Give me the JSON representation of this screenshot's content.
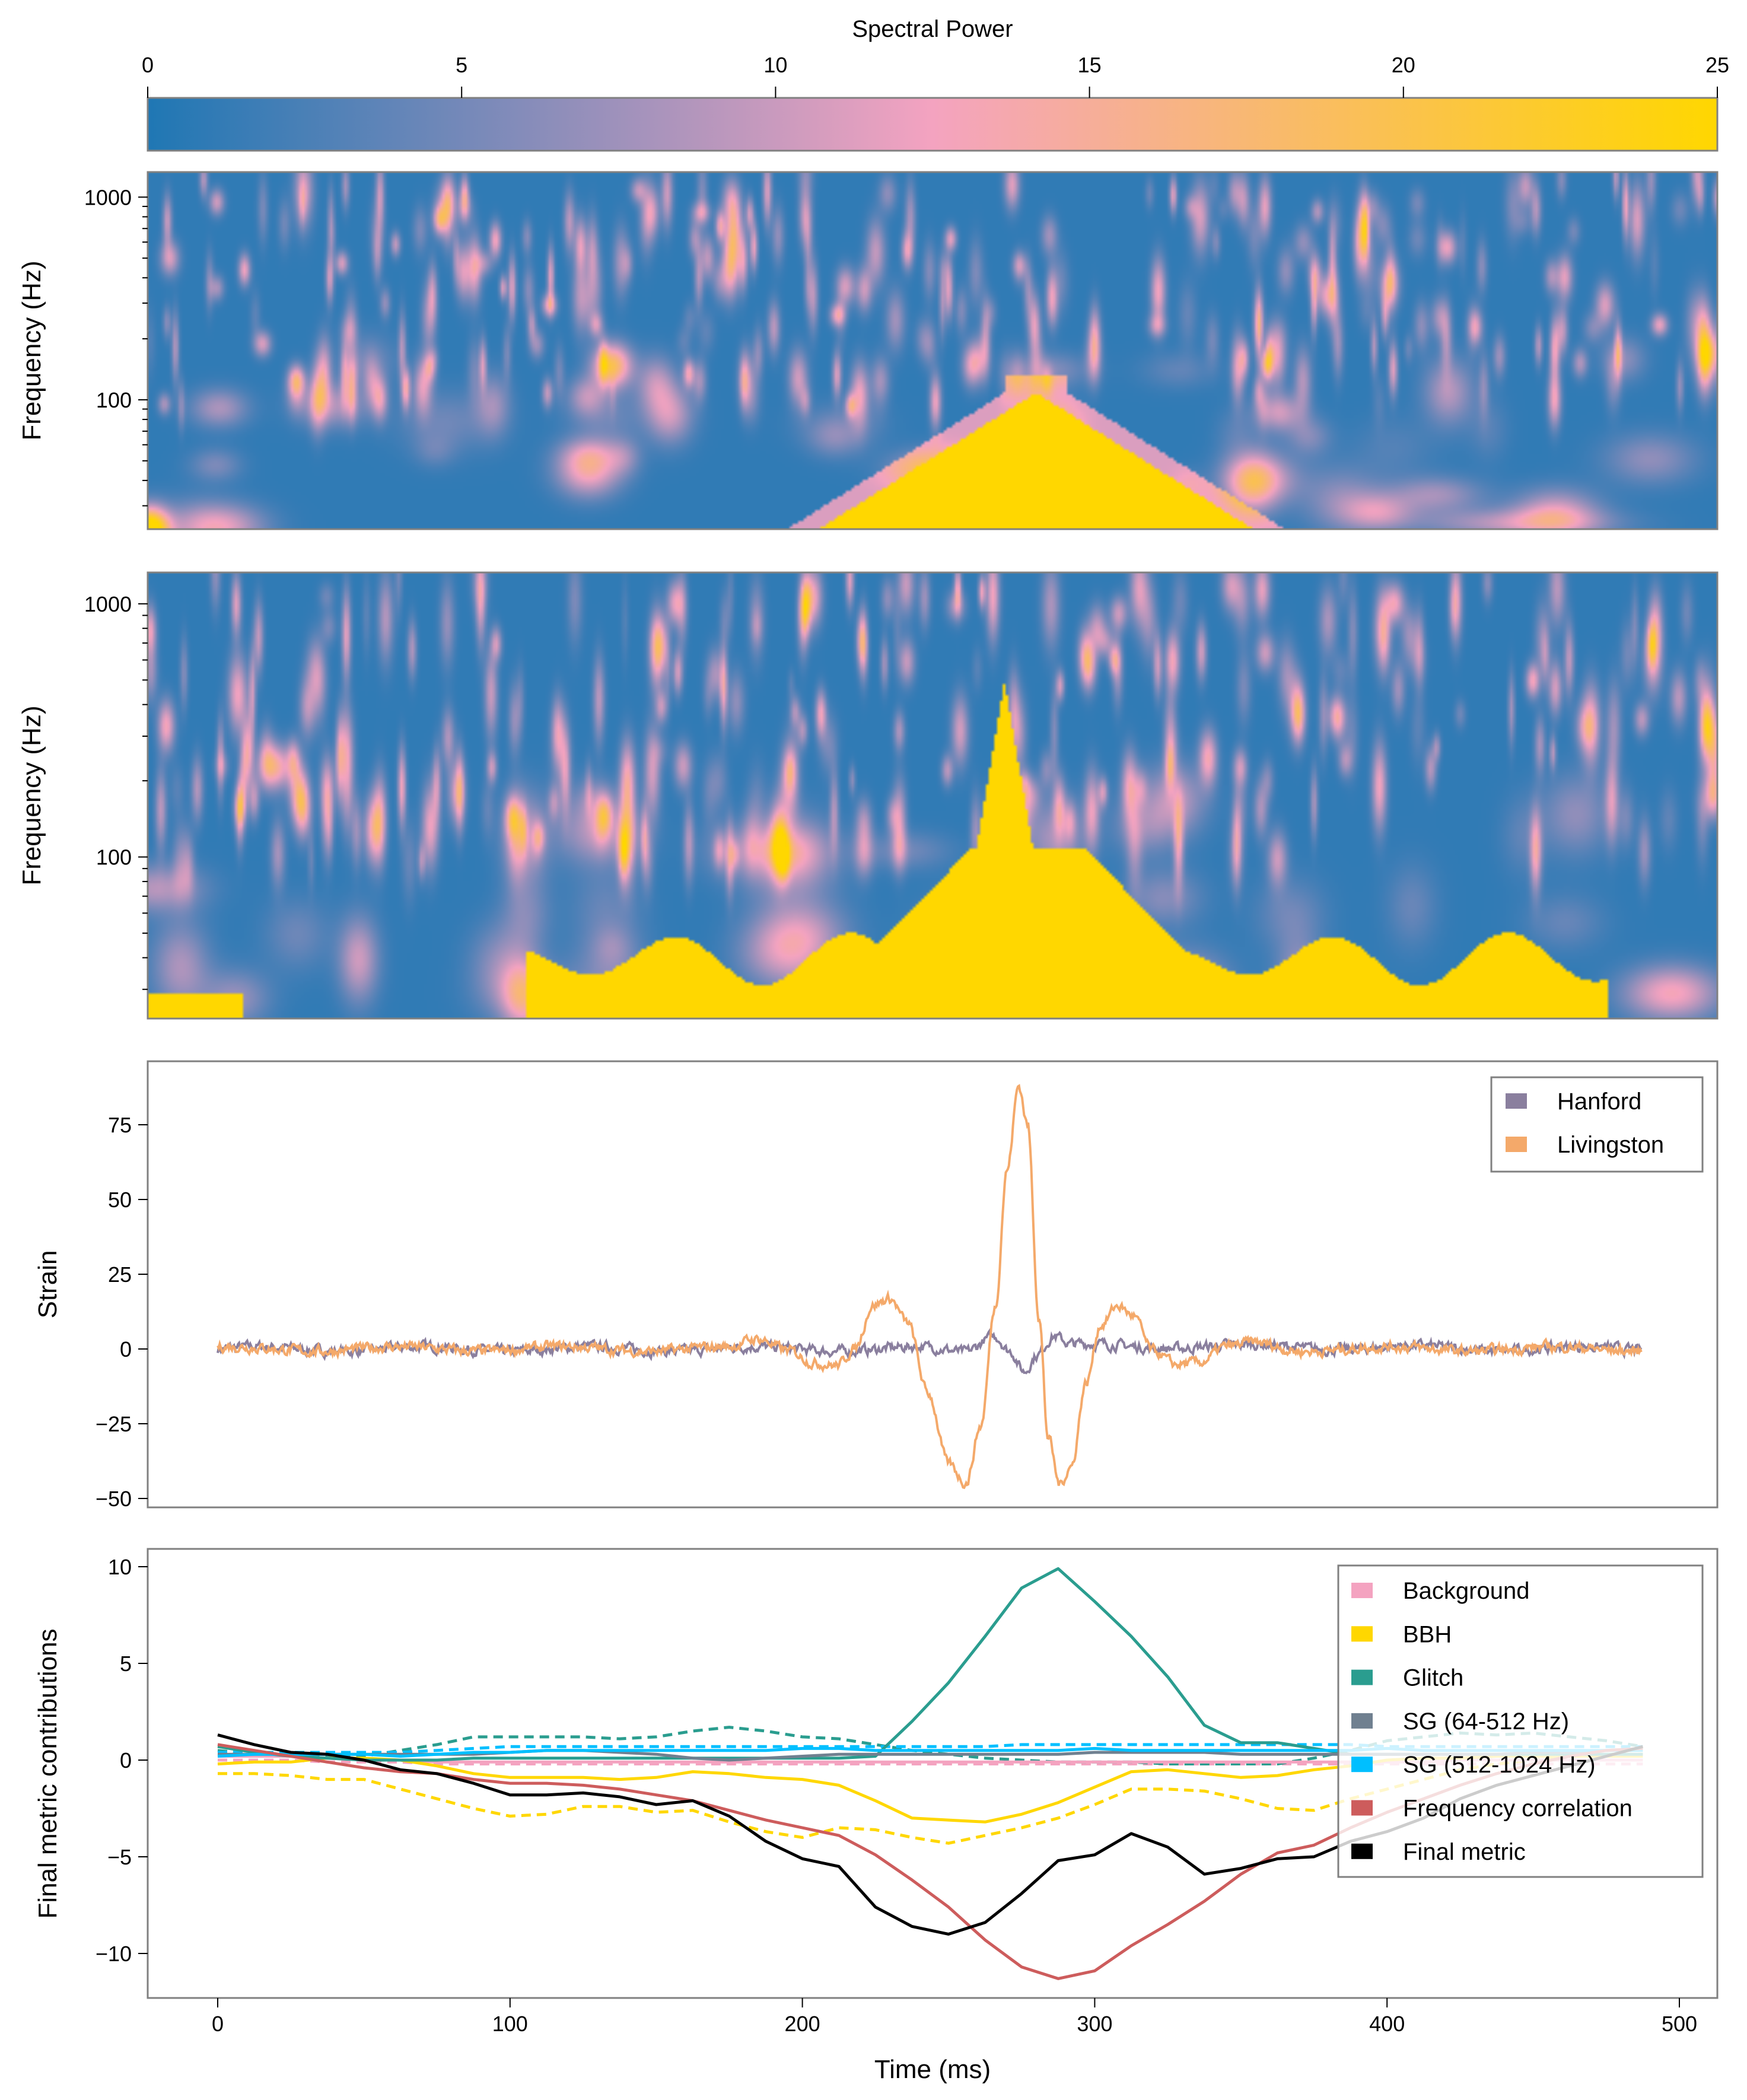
{
  "colorbar": {
    "label": "Spectral Power",
    "range": [
      0,
      25
    ],
    "ticks": [
      "0",
      "5",
      "10",
      "15",
      "20",
      "25"
    ],
    "colormap": [
      "#1f77b4",
      "#f4a3c0",
      "#ffd700"
    ]
  },
  "chart_data": [
    {
      "type": "heatmap",
      "id": "spectrogram-hanford",
      "ylabel": "Frequency (Hz)",
      "yscale": "log",
      "ylim": [
        23,
        1330
      ],
      "yticks": [
        "100",
        "1000"
      ],
      "color_range": [
        0,
        25
      ]
    },
    {
      "type": "heatmap",
      "id": "spectrogram-livingston",
      "ylabel": "Frequency (Hz)",
      "yscale": "log",
      "ylim": [
        23,
        1330
      ],
      "yticks": [
        "100",
        "1000"
      ],
      "color_range": [
        0,
        25
      ]
    },
    {
      "type": "line",
      "id": "strain",
      "ylabel": "Strain",
      "xlim": [
        -25,
        512
      ],
      "ylim": [
        -53,
        96
      ],
      "yticks": [
        "−50",
        "−25",
        "0",
        "25",
        "50",
        "75"
      ],
      "legend": "top-right",
      "series": [
        {
          "name": "Hanford",
          "color": "#8a7f9e",
          "points": [
            [
              0,
              0
            ],
            [
              200,
              0
            ],
            [
              240,
              0
            ],
            [
              255,
              -1
            ],
            [
              266,
              5
            ],
            [
              271,
              0
            ],
            [
              276,
              -7
            ],
            [
              280,
              -2
            ],
            [
              286,
              4
            ],
            [
              292,
              1
            ],
            [
              487,
              0
            ]
          ]
        },
        {
          "name": "Livingston",
          "color": "#f4a96a",
          "points": [
            [
              0,
              0
            ],
            [
              175,
              0
            ],
            [
              185,
              3
            ],
            [
              195,
              0
            ],
            [
              205,
              -4
            ],
            [
              212,
              -5
            ],
            [
              218,
              0
            ],
            [
              224,
              14
            ],
            [
              230,
              16
            ],
            [
              236,
              8
            ],
            [
              243,
              -15
            ],
            [
              250,
              -38
            ],
            [
              256,
              -44
            ],
            [
              261,
              -25
            ],
            [
              266,
              15
            ],
            [
              270,
              60
            ],
            [
              274,
              88
            ],
            [
              277,
              75
            ],
            [
              281,
              10
            ],
            [
              284,
              -30
            ],
            [
              288,
              -46
            ],
            [
              292,
              -40
            ],
            [
              297,
              -12
            ],
            [
              302,
              8
            ],
            [
              308,
              15
            ],
            [
              313,
              12
            ],
            [
              320,
              0
            ],
            [
              328,
              -5
            ],
            [
              336,
              -5
            ],
            [
              345,
              0
            ],
            [
              355,
              2
            ],
            [
              370,
              0
            ],
            [
              487,
              0
            ]
          ]
        }
      ]
    },
    {
      "type": "line",
      "id": "final-metric-contributions",
      "ylabel": "Final metric contributions",
      "xlabel": "Time (ms)",
      "xlim": [
        -25,
        512
      ],
      "ylim": [
        -12.3,
        10.9
      ],
      "xticks": [
        "0",
        "100",
        "200",
        "300",
        "400",
        "500"
      ],
      "yticks": [
        "−10",
        "−5",
        "0",
        "5",
        "10"
      ],
      "legend": "top-right",
      "x": [
        0,
        12.5,
        25,
        37.5,
        50,
        62.5,
        75,
        87.5,
        100,
        112.5,
        125,
        137.5,
        150,
        162.5,
        175,
        187.5,
        200,
        212.5,
        225,
        237.5,
        250,
        262.5,
        275,
        287.5,
        300,
        312.5,
        325,
        337.5,
        350,
        362.5,
        375,
        387.5,
        400,
        412.5,
        425,
        437.5,
        450,
        462.5,
        475,
        487.5
      ],
      "series": [
        {
          "name": "Background",
          "color": "#f4a3c0",
          "linestyle": "solid",
          "values": [
            0.2,
            0.2,
            0.2,
            0.1,
            0.0,
            0.0,
            -0.1,
            -0.1,
            -0.1,
            -0.1,
            -0.1,
            -0.1,
            -0.1,
            -0.1,
            -0.1,
            -0.1,
            -0.1,
            -0.1,
            -0.1,
            -0.1,
            -0.1,
            -0.1,
            -0.1,
            -0.1,
            -0.1,
            -0.1,
            -0.1,
            -0.1,
            -0.1,
            -0.1,
            -0.1,
            -0.1,
            -0.1,
            -0.1,
            0.0,
            0.0,
            0.0,
            0.0,
            0.0,
            0.0
          ]
        },
        {
          "name": "Background",
          "color": "#f4a3c0",
          "linestyle": "dashed",
          "values": [
            0.0,
            0.0,
            0.0,
            -0.1,
            -0.1,
            -0.1,
            -0.2,
            -0.2,
            -0.2,
            -0.2,
            -0.2,
            -0.2,
            -0.2,
            -0.2,
            -0.2,
            -0.2,
            -0.2,
            -0.2,
            -0.2,
            -0.2,
            -0.2,
            -0.2,
            -0.2,
            -0.2,
            -0.2,
            -0.2,
            -0.2,
            -0.2,
            -0.2,
            -0.2,
            -0.2,
            -0.2,
            -0.2,
            -0.2,
            -0.2,
            -0.2,
            -0.2,
            -0.2,
            -0.2,
            -0.2
          ]
        },
        {
          "name": "BBH",
          "color": "#ffd700",
          "linestyle": "solid",
          "values": [
            -0.2,
            -0.1,
            -0.1,
            0.1,
            0.1,
            0.0,
            -0.3,
            -0.7,
            -0.9,
            -0.9,
            -0.9,
            -1.0,
            -0.9,
            -0.6,
            -0.7,
            -0.9,
            -1.0,
            -1.3,
            -2.1,
            -3.0,
            -3.1,
            -3.2,
            -2.8,
            -2.2,
            -1.4,
            -0.6,
            -0.5,
            -0.7,
            -0.9,
            -0.8,
            -0.5,
            -0.3,
            0.0,
            0.1,
            0.1,
            0.2,
            0.2,
            0.2,
            0.2,
            0.2
          ]
        },
        {
          "name": "BBH",
          "color": "#ffd700",
          "linestyle": "dashed",
          "values": [
            -0.7,
            -0.7,
            -0.8,
            -1.0,
            -1.0,
            -1.5,
            -2.0,
            -2.5,
            -2.9,
            -2.8,
            -2.4,
            -2.4,
            -2.7,
            -2.6,
            -3.2,
            -3.7,
            -4.0,
            -3.5,
            -3.6,
            -4.0,
            -4.3,
            -3.9,
            -3.5,
            -3.0,
            -2.3,
            -1.5,
            -1.5,
            -1.6,
            -2.0,
            -2.5,
            -2.6,
            -2.0,
            -1.5,
            -1.0,
            -0.5,
            -0.2,
            0.0,
            0.2,
            0.3,
            0.3
          ]
        },
        {
          "name": "Glitch",
          "color": "#2a9d8f",
          "linestyle": "solid",
          "values": [
            0.7,
            0.4,
            0.2,
            0.1,
            0.0,
            0.0,
            0.0,
            0.1,
            0.1,
            0.1,
            0.1,
            0.1,
            0.1,
            0.1,
            0.1,
            0.1,
            0.1,
            0.1,
            0.2,
            2.0,
            4.0,
            6.4,
            8.9,
            9.9,
            8.2,
            6.4,
            4.3,
            1.8,
            0.9,
            0.9,
            0.6,
            0.3,
            0.3,
            0.3,
            0.3,
            0.3,
            0.3,
            0.3,
            0.3,
            0.3
          ]
        },
        {
          "name": "Glitch",
          "color": "#2a9d8f",
          "linestyle": "dashed",
          "values": [
            0.5,
            0.3,
            0.2,
            0.2,
            0.2,
            0.5,
            0.8,
            1.2,
            1.2,
            1.2,
            1.2,
            1.1,
            1.2,
            1.5,
            1.7,
            1.5,
            1.2,
            1.1,
            0.8,
            0.5,
            0.3,
            0.1,
            0.0,
            -0.1,
            -0.1,
            -0.1,
            -0.2,
            -0.2,
            -0.2,
            -0.2,
            0.1,
            0.5,
            1.0,
            1.2,
            1.4,
            1.3,
            1.4,
            1.2,
            1.0,
            0.7
          ]
        },
        {
          "name": "SG (64-512 Hz)",
          "color": "#708090",
          "linestyle": "solid",
          "values": [
            0.3,
            0.3,
            0.3,
            0.3,
            0.3,
            0.3,
            0.3,
            0.3,
            0.4,
            0.5,
            0.5,
            0.4,
            0.3,
            0.1,
            0.0,
            0.1,
            0.2,
            0.3,
            0.3,
            0.3,
            0.3,
            0.3,
            0.3,
            0.3,
            0.4,
            0.4,
            0.4,
            0.4,
            0.3,
            0.3,
            0.3,
            0.3,
            0.3,
            0.3,
            0.3,
            0.3,
            0.4,
            0.4,
            0.5,
            0.6
          ]
        },
        {
          "name": "SG (512-1024 Hz)",
          "color": "#00bfff",
          "linestyle": "solid",
          "values": [
            0.2,
            0.3,
            0.3,
            0.3,
            0.3,
            0.2,
            0.3,
            0.4,
            0.4,
            0.5,
            0.5,
            0.5,
            0.5,
            0.5,
            0.5,
            0.5,
            0.6,
            0.6,
            0.5,
            0.5,
            0.5,
            0.5,
            0.5,
            0.5,
            0.6,
            0.5,
            0.5,
            0.5,
            0.5,
            0.5,
            0.5,
            0.5,
            0.6,
            0.5,
            0.5,
            0.5,
            0.5,
            0.5,
            0.5,
            0.5
          ]
        },
        {
          "name": "SG (512-1024 Hz)",
          "color": "#00bfff",
          "linestyle": "dashed",
          "values": [
            0.4,
            0.4,
            0.4,
            0.4,
            0.4,
            0.4,
            0.5,
            0.6,
            0.7,
            0.7,
            0.7,
            0.7,
            0.7,
            0.7,
            0.7,
            0.7,
            0.7,
            0.7,
            0.7,
            0.7,
            0.7,
            0.7,
            0.8,
            0.8,
            0.8,
            0.8,
            0.8,
            0.8,
            0.8,
            0.8,
            0.8,
            0.8,
            0.7,
            0.7,
            0.7,
            0.7,
            0.7,
            0.7,
            0.7,
            0.7
          ]
        },
        {
          "name": "Frequency correlation",
          "color": "#cd5c5c",
          "linestyle": "solid",
          "values": [
            0.8,
            0.5,
            0.2,
            -0.1,
            -0.4,
            -0.6,
            -0.7,
            -1.0,
            -1.2,
            -1.2,
            -1.3,
            -1.5,
            -1.8,
            -2.1,
            -2.6,
            -3.1,
            -3.5,
            -3.9,
            -4.9,
            -6.2,
            -7.6,
            -9.3,
            -10.7,
            -11.3,
            -10.9,
            -9.6,
            -8.5,
            -7.3,
            -5.9,
            -4.8,
            -4.4,
            -3.5,
            -2.7,
            -2.0,
            -1.3,
            -0.7,
            -0.2,
            0.2,
            0.5,
            0.6
          ]
        },
        {
          "name": "Final metric",
          "color": "#000000",
          "linestyle": "solid",
          "values": [
            1.3,
            0.8,
            0.4,
            0.3,
            0.0,
            -0.5,
            -0.7,
            -1.2,
            -1.8,
            -1.8,
            -1.7,
            -1.9,
            -2.3,
            -2.1,
            -2.9,
            -4.2,
            -5.1,
            -5.5,
            -7.6,
            -8.6,
            -9.0,
            -8.4,
            -6.9,
            -5.2,
            -4.9,
            -3.8,
            -4.5,
            -5.9,
            -5.6,
            -5.1,
            -5.0,
            -4.2,
            -3.7,
            -3.0,
            -2.0,
            -1.3,
            -0.8,
            -0.3,
            0.2,
            0.7
          ]
        }
      ]
    }
  ]
}
